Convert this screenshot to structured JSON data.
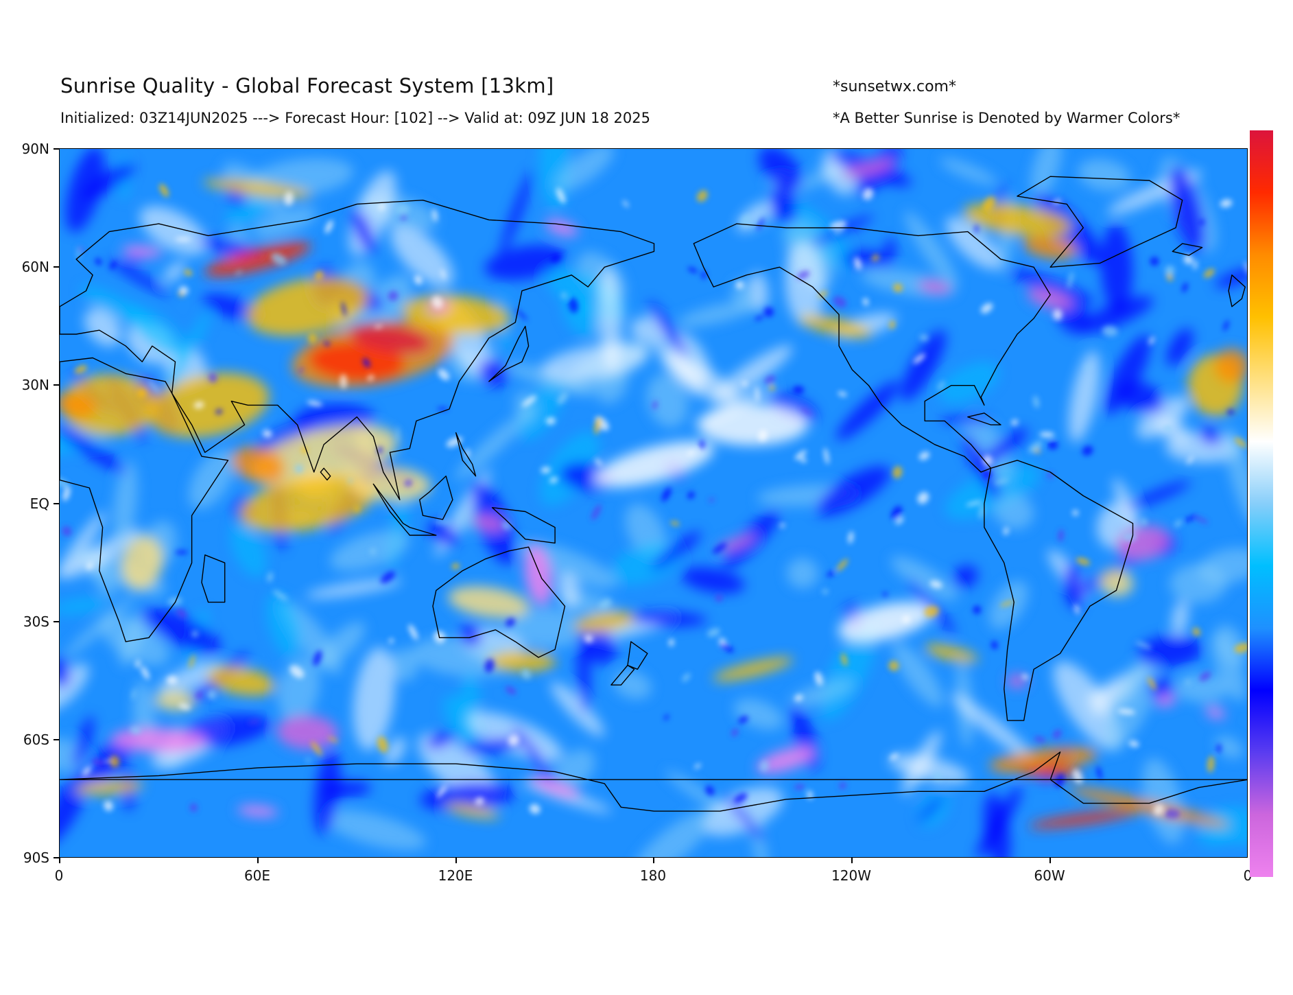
{
  "header": {
    "title": "Sunrise Quality - Global Forecast System [13km]",
    "subtitle": "Initialized: 03Z14JUN2025 ---> Forecast Hour: [102] --> Valid at: 09Z JUN 18 2025",
    "site": "*sunsetwx.com*",
    "note": "*A Better Sunrise is Denoted by Warmer Colors*"
  },
  "map": {
    "projection": "equirectangular",
    "lat_labels": [
      "90N",
      "60N",
      "30N",
      "EQ",
      "30S",
      "60S",
      "90S"
    ],
    "lon_labels": [
      "0",
      "60E",
      "120E",
      "180",
      "120W",
      "60W",
      "0"
    ],
    "colormap": [
      "#ee82ee",
      "#cc66dd",
      "#5a3cf0",
      "#0000ff",
      "#1e90ff",
      "#00bfff",
      "#87cefa",
      "#ffffff",
      "#ffe080",
      "#ffc000",
      "#ff8c00",
      "#ff2a00",
      "#dc143c"
    ]
  },
  "colorbar": {
    "colors": [
      "#dc143c",
      "#ff2a00",
      "#ff8c00",
      "#ffc000",
      "#ffe080",
      "#ffffff",
      "#87cefa",
      "#00bfff",
      "#1e90ff",
      "#0000ff",
      "#5a3cf0",
      "#cc66dd",
      "#ee82ee"
    ]
  }
}
